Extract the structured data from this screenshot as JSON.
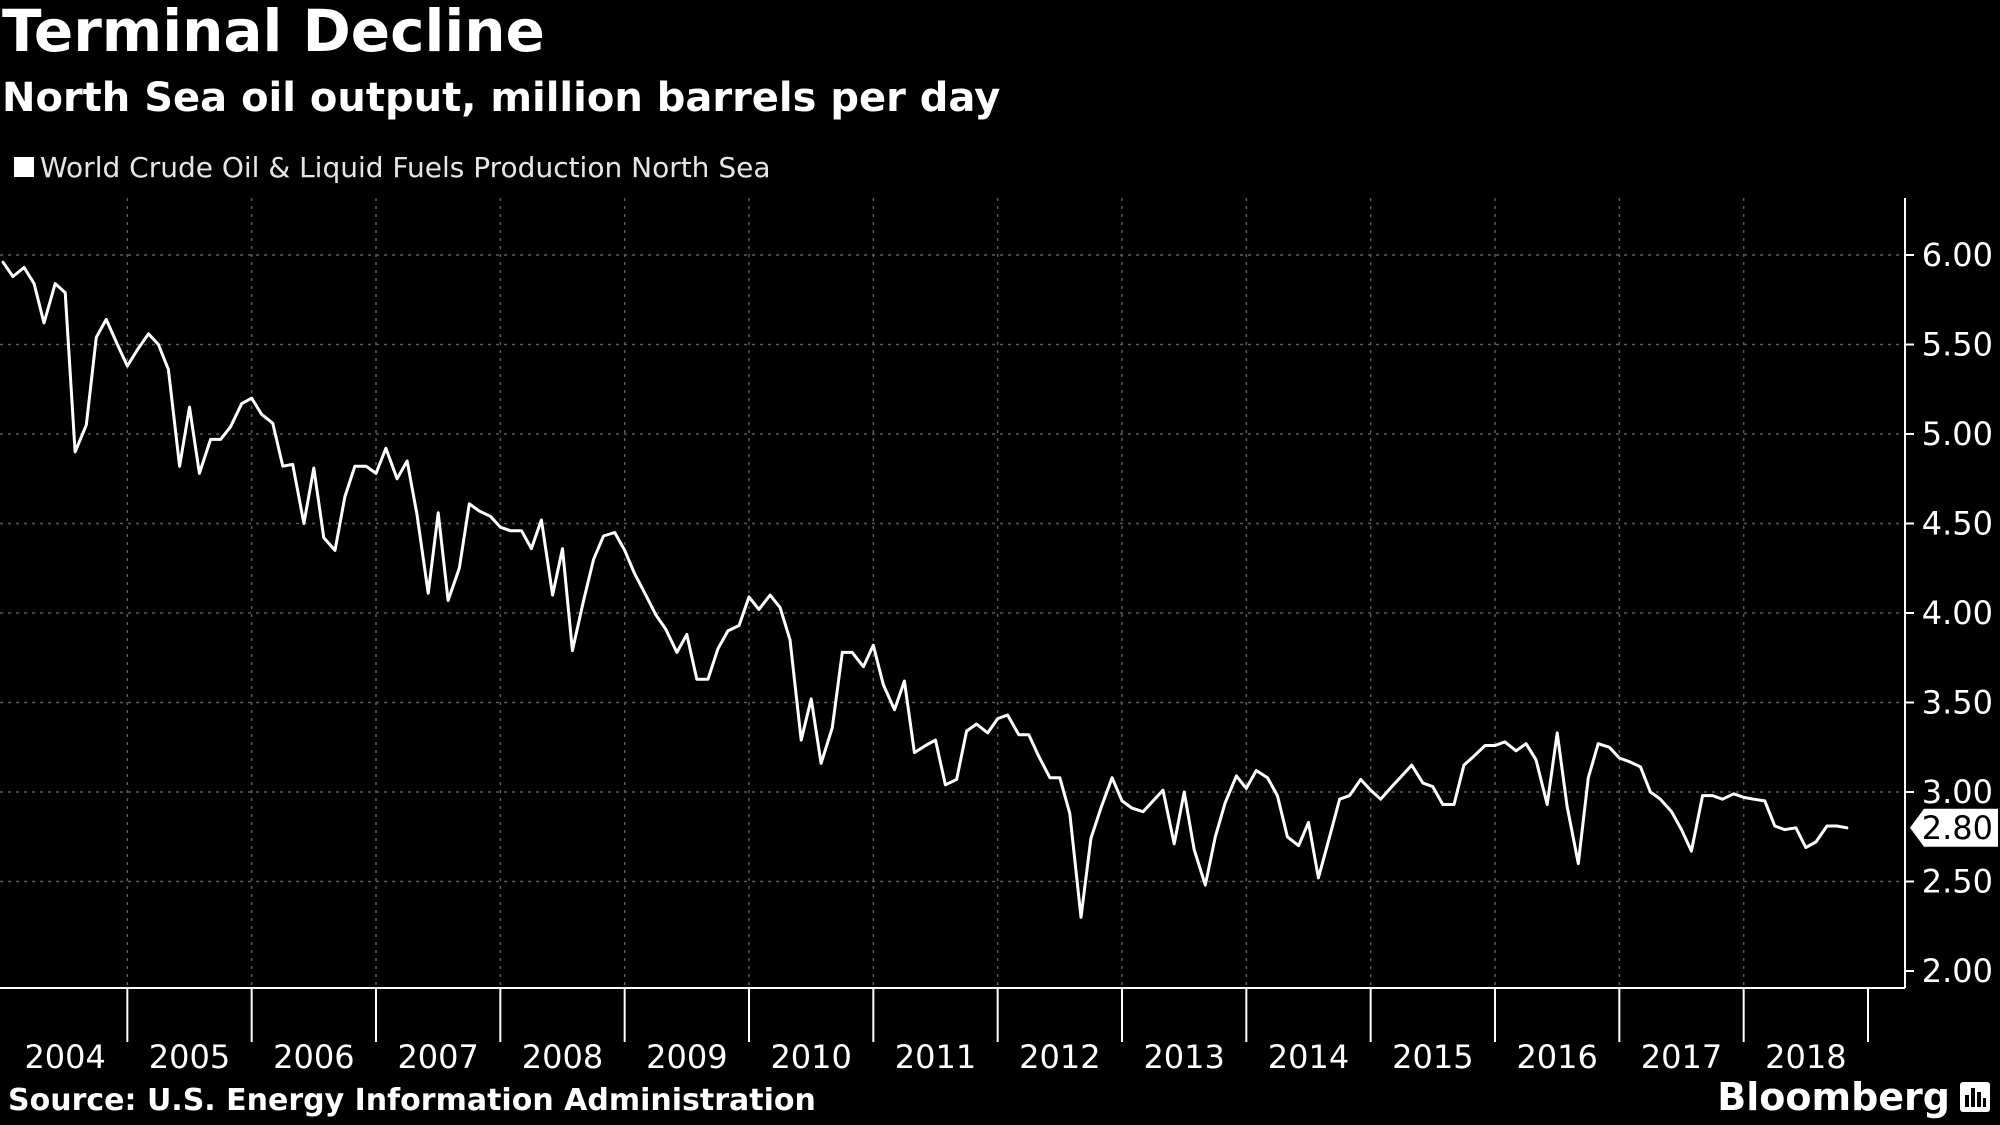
{
  "header": {
    "title": "Terminal Decline",
    "subtitle": "North Sea oil output, million barrels per day"
  },
  "legend": {
    "label": "World Crude Oil & Liquid Fuels Production North Sea"
  },
  "footer": {
    "source": "Source: U.S. Energy Information Administration",
    "brand": "Bloomberg"
  },
  "colors": {
    "background": "#000000",
    "line": "#ffffff",
    "grid": "#5a5a5a",
    "text": "#ffffff"
  },
  "chart_data": {
    "type": "line",
    "title": "Terminal Decline",
    "subtitle": "North Sea oil output, million barrels per day",
    "xlabel": "",
    "ylabel": "",
    "x_range": [
      2004.0,
      2018.9
    ],
    "ylim": [
      1.9,
      6.25
    ],
    "y_ticks": [
      "6.00",
      "5.50",
      "5.00",
      "4.50",
      "4.00",
      "3.50",
      "3.00",
      "2.50",
      "2.00"
    ],
    "x_tick_labels": [
      "2004",
      "2005",
      "2006",
      "2007",
      "2008",
      "2009",
      "2010",
      "2011",
      "2012",
      "2013",
      "2014",
      "2015",
      "2016",
      "2017",
      "2018"
    ],
    "grid": true,
    "legend_position": "top-left",
    "last_value_label": "2.80",
    "series": [
      {
        "name": "World Crude Oil & Liquid Fuels Production North Sea",
        "points": [
          [
            2004.0,
            5.96
          ],
          [
            2004.08,
            5.88
          ],
          [
            2004.17,
            5.93
          ],
          [
            2004.25,
            5.84
          ],
          [
            2004.33,
            5.62
          ],
          [
            2004.42,
            5.84
          ],
          [
            2004.5,
            5.79
          ],
          [
            2004.58,
            4.9
          ],
          [
            2004.67,
            5.05
          ],
          [
            2004.75,
            5.54
          ],
          [
            2004.83,
            5.64
          ],
          [
            2004.92,
            5.5
          ],
          [
            2005.0,
            5.38
          ],
          [
            2005.08,
            5.47
          ],
          [
            2005.17,
            5.56
          ],
          [
            2005.25,
            5.5
          ],
          [
            2005.33,
            5.36
          ],
          [
            2005.42,
            4.82
          ],
          [
            2005.5,
            5.15
          ],
          [
            2005.58,
            4.78
          ],
          [
            2005.67,
            4.97
          ],
          [
            2005.75,
            4.97
          ],
          [
            2005.83,
            5.04
          ],
          [
            2005.92,
            5.17
          ],
          [
            2006.0,
            5.2
          ],
          [
            2006.08,
            5.11
          ],
          [
            2006.17,
            5.06
          ],
          [
            2006.25,
            4.82
          ],
          [
            2006.33,
            4.83
          ],
          [
            2006.42,
            4.5
          ],
          [
            2006.5,
            4.81
          ],
          [
            2006.58,
            4.42
          ],
          [
            2006.67,
            4.35
          ],
          [
            2006.75,
            4.65
          ],
          [
            2006.83,
            4.82
          ],
          [
            2006.92,
            4.82
          ],
          [
            2007.0,
            4.78
          ],
          [
            2007.08,
            4.92
          ],
          [
            2007.17,
            4.75
          ],
          [
            2007.25,
            4.85
          ],
          [
            2007.33,
            4.55
          ],
          [
            2007.42,
            4.11
          ],
          [
            2007.5,
            4.56
          ],
          [
            2007.58,
            4.07
          ],
          [
            2007.67,
            4.25
          ],
          [
            2007.75,
            4.61
          ],
          [
            2007.83,
            4.57
          ],
          [
            2007.92,
            4.54
          ],
          [
            2008.0,
            4.48
          ],
          [
            2008.08,
            4.46
          ],
          [
            2008.17,
            4.46
          ],
          [
            2008.25,
            4.36
          ],
          [
            2008.33,
            4.52
          ],
          [
            2008.42,
            4.1
          ],
          [
            2008.5,
            4.36
          ],
          [
            2008.58,
            3.79
          ],
          [
            2008.67,
            4.07
          ],
          [
            2008.75,
            4.3
          ],
          [
            2008.83,
            4.43
          ],
          [
            2008.92,
            4.45
          ],
          [
            2009.0,
            4.35
          ],
          [
            2009.08,
            4.22
          ],
          [
            2009.17,
            4.1
          ],
          [
            2009.25,
            3.99
          ],
          [
            2009.33,
            3.91
          ],
          [
            2009.42,
            3.78
          ],
          [
            2009.5,
            3.88
          ],
          [
            2009.58,
            3.63
          ],
          [
            2009.67,
            3.63
          ],
          [
            2009.75,
            3.8
          ],
          [
            2009.83,
            3.9
          ],
          [
            2009.92,
            3.93
          ],
          [
            2010.0,
            4.09
          ],
          [
            2010.08,
            4.02
          ],
          [
            2010.17,
            4.1
          ],
          [
            2010.25,
            4.03
          ],
          [
            2010.33,
            3.85
          ],
          [
            2010.42,
            3.29
          ],
          [
            2010.5,
            3.52
          ],
          [
            2010.58,
            3.16
          ],
          [
            2010.67,
            3.36
          ],
          [
            2010.75,
            3.78
          ],
          [
            2010.83,
            3.78
          ],
          [
            2010.92,
            3.7
          ],
          [
            2011.0,
            3.82
          ],
          [
            2011.08,
            3.6
          ],
          [
            2011.17,
            3.46
          ],
          [
            2011.25,
            3.62
          ],
          [
            2011.33,
            3.22
          ],
          [
            2011.42,
            3.26
          ],
          [
            2011.5,
            3.29
          ],
          [
            2011.58,
            3.04
          ],
          [
            2011.67,
            3.07
          ],
          [
            2011.75,
            3.34
          ],
          [
            2011.83,
            3.38
          ],
          [
            2011.92,
            3.33
          ],
          [
            2012.0,
            3.41
          ],
          [
            2012.08,
            3.43
          ],
          [
            2012.17,
            3.32
          ],
          [
            2012.25,
            3.32
          ],
          [
            2012.33,
            3.2
          ],
          [
            2012.42,
            3.08
          ],
          [
            2012.5,
            3.08
          ],
          [
            2012.58,
            2.88
          ],
          [
            2012.67,
            2.3
          ],
          [
            2012.75,
            2.74
          ],
          [
            2012.83,
            2.91
          ],
          [
            2012.92,
            3.08
          ],
          [
            2013.0,
            2.95
          ],
          [
            2013.08,
            2.91
          ],
          [
            2013.17,
            2.89
          ],
          [
            2013.25,
            2.95
          ],
          [
            2013.33,
            3.01
          ],
          [
            2013.42,
            2.71
          ],
          [
            2013.5,
            3.0
          ],
          [
            2013.58,
            2.68
          ],
          [
            2013.67,
            2.48
          ],
          [
            2013.75,
            2.75
          ],
          [
            2013.83,
            2.94
          ],
          [
            2013.92,
            3.09
          ],
          [
            2014.0,
            3.02
          ],
          [
            2014.08,
            3.12
          ],
          [
            2014.17,
            3.08
          ],
          [
            2014.25,
            2.98
          ],
          [
            2014.33,
            2.75
          ],
          [
            2014.42,
            2.7
          ],
          [
            2014.5,
            2.83
          ],
          [
            2014.58,
            2.52
          ],
          [
            2014.67,
            2.75
          ],
          [
            2014.75,
            2.96
          ],
          [
            2014.83,
            2.98
          ],
          [
            2014.92,
            3.07
          ],
          [
            2015.0,
            3.01
          ],
          [
            2015.08,
            2.96
          ],
          [
            2015.17,
            3.03
          ],
          [
            2015.25,
            3.09
          ],
          [
            2015.33,
            3.15
          ],
          [
            2015.42,
            3.05
          ],
          [
            2015.5,
            3.03
          ],
          [
            2015.58,
            2.93
          ],
          [
            2015.67,
            2.93
          ],
          [
            2015.75,
            3.15
          ],
          [
            2015.83,
            3.2
          ],
          [
            2015.92,
            3.26
          ],
          [
            2016.0,
            3.26
          ],
          [
            2016.08,
            3.28
          ],
          [
            2016.17,
            3.23
          ],
          [
            2016.25,
            3.27
          ],
          [
            2016.33,
            3.18
          ],
          [
            2016.42,
            2.93
          ],
          [
            2016.5,
            3.33
          ],
          [
            2016.58,
            2.92
          ],
          [
            2016.67,
            2.6
          ],
          [
            2016.75,
            3.08
          ],
          [
            2016.83,
            3.27
          ],
          [
            2016.92,
            3.25
          ],
          [
            2017.0,
            3.19
          ],
          [
            2017.08,
            3.17
          ],
          [
            2017.17,
            3.14
          ],
          [
            2017.25,
            3.0
          ],
          [
            2017.33,
            2.96
          ],
          [
            2017.42,
            2.89
          ],
          [
            2017.5,
            2.79
          ],
          [
            2017.58,
            2.67
          ],
          [
            2017.67,
            2.98
          ],
          [
            2017.75,
            2.98
          ],
          [
            2017.83,
            2.96
          ],
          [
            2017.92,
            2.99
          ],
          [
            2018.0,
            2.97
          ],
          [
            2018.08,
            2.96
          ],
          [
            2018.17,
            2.95
          ],
          [
            2018.25,
            2.81
          ],
          [
            2018.33,
            2.79
          ],
          [
            2018.42,
            2.8
          ],
          [
            2018.5,
            2.69
          ],
          [
            2018.58,
            2.72
          ],
          [
            2018.67,
            2.81
          ],
          [
            2018.75,
            2.81
          ],
          [
            2018.83,
            2.8
          ]
        ]
      }
    ]
  }
}
